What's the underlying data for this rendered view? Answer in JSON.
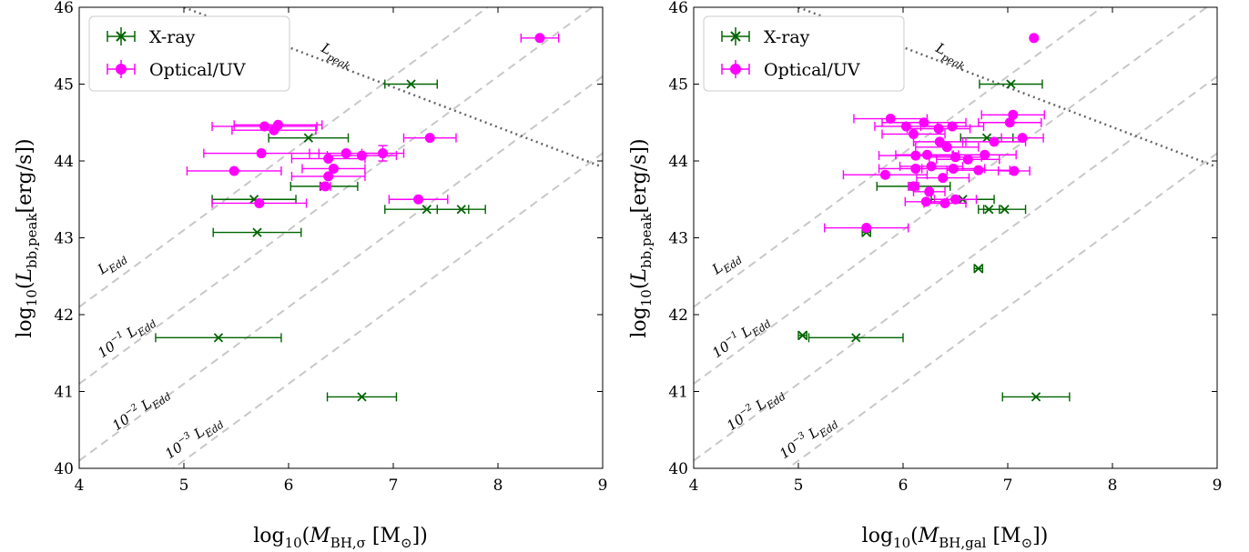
{
  "chart_data": [
    {
      "type": "scatter",
      "xlabel": "log10(M_BH,σ [M⊙])",
      "ylabel": "log10(L_bb,peak [erg/s])",
      "xlim": [
        4,
        9
      ],
      "ylim": [
        40,
        46
      ],
      "xticks": [
        4,
        5,
        6,
        7,
        8,
        9
      ],
      "yticks": [
        40,
        41,
        42,
        43,
        44,
        45,
        46
      ],
      "grid": false,
      "legend": {
        "position": "top-left",
        "entries": [
          "X-ray",
          "Optical/UV"
        ]
      },
      "colors": {
        "xray": "#006400",
        "optical": "#ff00ff",
        "edd_lines": "#c8c8c8",
        "peak_line": "#666666"
      },
      "reference_lines": [
        {
          "label": "L_Edd",
          "offset": 0
        },
        {
          "label": "10^-1 L_Edd",
          "offset": -1
        },
        {
          "label": "10^-2 L_Edd",
          "offset": -2
        },
        {
          "label": "10^-3 L_Edd",
          "offset": -3
        }
      ],
      "peak_line": {
        "label": "L_peak",
        "x": [
          5,
          9
        ],
        "y": [
          46,
          43.92
        ]
      },
      "series": [
        {
          "name": "X-ray",
          "marker": "x",
          "points": [
            {
              "x": 7.17,
              "y": 45.0,
              "xerr": 0.25
            },
            {
              "x": 6.19,
              "y": 44.3,
              "xerr": 0.38
            },
            {
              "x": 6.34,
              "y": 43.67,
              "xerr": 0.32
            },
            {
              "x": 5.67,
              "y": 43.5,
              "xerr": 0.4
            },
            {
              "x": 7.32,
              "y": 43.37,
              "xerr": 0.4
            },
            {
              "x": 7.65,
              "y": 43.37,
              "xerr": 0.23
            },
            {
              "x": 5.7,
              "y": 43.07,
              "xerr": 0.42
            },
            {
              "x": 5.33,
              "y": 41.7,
              "xerr": 0.6
            },
            {
              "x": 6.7,
              "y": 40.93,
              "xerr": 0.33
            }
          ]
        },
        {
          "name": "Optical/UV",
          "marker": "o",
          "points": [
            {
              "x": 8.4,
              "y": 45.6,
              "xerr": 0.18
            },
            {
              "x": 5.77,
              "y": 44.45,
              "xerr": 0.5
            },
            {
              "x": 5.9,
              "y": 44.47,
              "xerr": 0.42
            },
            {
              "x": 5.86,
              "y": 44.4,
              "xerr": 0.4
            },
            {
              "x": 7.35,
              "y": 44.3,
              "xerr": 0.25
            },
            {
              "x": 6.9,
              "y": 44.1,
              "xerr": 0.2,
              "yerr": 0.1
            },
            {
              "x": 5.74,
              "y": 44.1,
              "xerr": 0.55
            },
            {
              "x": 6.55,
              "y": 44.1,
              "xerr": 0.35
            },
            {
              "x": 6.7,
              "y": 44.07,
              "xerr": 0.33
            },
            {
              "x": 6.38,
              "y": 44.03,
              "xerr": 0.35
            },
            {
              "x": 6.43,
              "y": 43.9,
              "xerr": 0.3
            },
            {
              "x": 5.48,
              "y": 43.87,
              "xerr": 0.45
            },
            {
              "x": 6.38,
              "y": 43.8,
              "xerr": 0.35
            },
            {
              "x": 6.35,
              "y": 43.67,
              "xerr": 0.05
            },
            {
              "x": 7.24,
              "y": 43.5,
              "xerr": 0.28
            },
            {
              "x": 5.72,
              "y": 43.45,
              "xerr": 0.45
            }
          ]
        }
      ]
    },
    {
      "type": "scatter",
      "xlabel": "log10(M_BH,gal [M⊙])",
      "ylabel": "log10(L_bb,peak [erg/s])",
      "xlim": [
        4,
        9
      ],
      "ylim": [
        40,
        46
      ],
      "xticks": [
        4,
        5,
        6,
        7,
        8,
        9
      ],
      "yticks": [
        40,
        41,
        42,
        43,
        44,
        45,
        46
      ],
      "grid": false,
      "legend": {
        "position": "top-left",
        "entries": [
          "X-ray",
          "Optical/UV"
        ]
      },
      "colors": {
        "xray": "#006400",
        "optical": "#ff00ff",
        "edd_lines": "#c8c8c8",
        "peak_line": "#666666"
      },
      "reference_lines": [
        {
          "label": "L_Edd",
          "offset": 0
        },
        {
          "label": "10^-1 L_Edd",
          "offset": -1
        },
        {
          "label": "10^-2 L_Edd",
          "offset": -2
        },
        {
          "label": "10^-3 L_Edd",
          "offset": -3
        }
      ],
      "peak_line": {
        "label": "L_peak",
        "x": [
          5,
          9
        ],
        "y": [
          46,
          43.92
        ]
      },
      "series": [
        {
          "name": "X-ray",
          "marker": "x",
          "points": [
            {
              "x": 7.03,
              "y": 45.0,
              "xerr": 0.3
            },
            {
              "x": 6.8,
              "y": 44.3,
              "xerr": 0.25
            },
            {
              "x": 6.1,
              "y": 43.67,
              "xerr": 0.35
            },
            {
              "x": 6.57,
              "y": 43.5,
              "xerr": 0.3
            },
            {
              "x": 6.82,
              "y": 43.37,
              "xerr": 0.1
            },
            {
              "x": 6.97,
              "y": 43.37,
              "xerr": 0.2
            },
            {
              "x": 5.65,
              "y": 43.07,
              "xerr": 0.04
            },
            {
              "x": 6.72,
              "y": 42.6,
              "xerr": 0.04
            },
            {
              "x": 5.04,
              "y": 41.73,
              "xerr": 0.04
            },
            {
              "x": 5.55,
              "y": 41.7,
              "xerr": 0.45
            },
            {
              "x": 7.27,
              "y": 40.93,
              "xerr": 0.32
            }
          ]
        },
        {
          "name": "Optical/UV",
          "marker": "o",
          "points": [
            {
              "x": 7.25,
              "y": 45.6
            },
            {
              "x": 5.88,
              "y": 44.55,
              "xerr": 0.35
            },
            {
              "x": 6.2,
              "y": 44.5,
              "xerr": 0.4
            },
            {
              "x": 6.03,
              "y": 44.45,
              "xerr": 0.3
            },
            {
              "x": 6.34,
              "y": 44.42,
              "xerr": 0.3
            },
            {
              "x": 6.47,
              "y": 44.45,
              "xerr": 0.3
            },
            {
              "x": 7.05,
              "y": 44.6,
              "xerr": 0.3
            },
            {
              "x": 7.02,
              "y": 44.5,
              "xerr": 0.3
            },
            {
              "x": 6.1,
              "y": 44.35,
              "xerr": 0.3
            },
            {
              "x": 6.35,
              "y": 44.25,
              "xerr": 0.25
            },
            {
              "x": 6.87,
              "y": 44.25,
              "xerr": 0.3
            },
            {
              "x": 7.14,
              "y": 44.3,
              "xerr": 0.2
            },
            {
              "x": 6.42,
              "y": 44.18,
              "xerr": 0.3
            },
            {
              "x": 6.12,
              "y": 44.07,
              "xerr": 0.35
            },
            {
              "x": 6.23,
              "y": 44.08,
              "xerr": 0.3
            },
            {
              "x": 6.5,
              "y": 44.05,
              "xerr": 0.25
            },
            {
              "x": 6.62,
              "y": 44.02,
              "xerr": 0.3
            },
            {
              "x": 6.78,
              "y": 44.08,
              "xerr": 0.3
            },
            {
              "x": 6.12,
              "y": 43.9,
              "xerr": 0.35
            },
            {
              "x": 6.27,
              "y": 43.93,
              "xerr": 0.3
            },
            {
              "x": 6.48,
              "y": 43.9,
              "xerr": 0.3
            },
            {
              "x": 6.72,
              "y": 43.88,
              "xerr": 0.3
            },
            {
              "x": 7.06,
              "y": 43.87,
              "xerr": 0.15
            },
            {
              "x": 5.83,
              "y": 43.82,
              "xerr": 0.4
            },
            {
              "x": 6.38,
              "y": 43.78,
              "xerr": 0.25
            },
            {
              "x": 6.1,
              "y": 43.67,
              "xerr": 0.05
            },
            {
              "x": 6.25,
              "y": 43.6,
              "xerr": 0.15
            },
            {
              "x": 6.5,
              "y": 43.5,
              "xerr": 0.2
            },
            {
              "x": 6.22,
              "y": 43.47,
              "xerr": 0.2
            },
            {
              "x": 6.4,
              "y": 43.45,
              "xerr": 0.2
            },
            {
              "x": 5.65,
              "y": 43.13,
              "xerr": 0.4
            }
          ]
        }
      ]
    }
  ]
}
